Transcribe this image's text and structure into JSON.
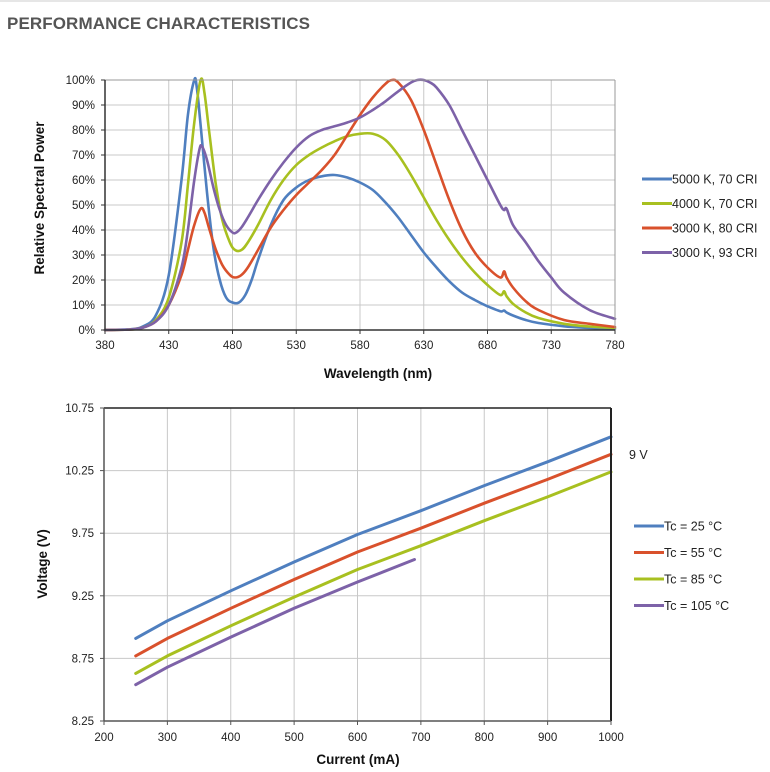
{
  "page": {
    "title": "PERFORMANCE CHARACTERISTICS"
  },
  "chart_data": [
    {
      "type": "line",
      "title": "",
      "xlabel": "Wavelength (nm)",
      "ylabel": "Relative Spectral Power",
      "xlim": [
        380,
        780
      ],
      "ylim": [
        0,
        100
      ],
      "x_ticks": [
        "380",
        "430",
        "480",
        "530",
        "580",
        "630",
        "680",
        "730",
        "780"
      ],
      "y_ticks": [
        "0%",
        "10%",
        "20%",
        "30%",
        "40%",
        "50%",
        "60%",
        "70%",
        "80%",
        "90%",
        "100%"
      ],
      "grid": true,
      "legend_position": "right",
      "series": [
        {
          "name": "5000 K, 70 CRI",
          "color": "#4f7fbf",
          "x": [
            380,
            400,
            410,
            420,
            430,
            440,
            445,
            450,
            452,
            455,
            460,
            465,
            470,
            475,
            480,
            485,
            490,
            495,
            500,
            510,
            520,
            530,
            540,
            550,
            560,
            570,
            580,
            590,
            600,
            610,
            620,
            630,
            640,
            650,
            660,
            670,
            680,
            690,
            693,
            695,
            700,
            710,
            720,
            740,
            760,
            780
          ],
          "y": [
            0,
            0.3,
            1.5,
            6,
            22,
            60,
            86,
            100,
            97,
            82,
            55,
            33,
            20,
            13,
            11,
            11,
            14,
            20,
            28,
            42,
            52,
            57,
            60,
            61.5,
            62,
            61,
            59,
            56,
            51,
            45,
            38,
            31,
            25,
            19.5,
            15,
            12,
            9.5,
            7.5,
            7.8,
            7,
            5.8,
            4,
            2.8,
            1.5,
            0.8,
            0.4
          ]
        },
        {
          "name": "4000 K, 70 CRI",
          "color": "#a8c020",
          "x": [
            380,
            400,
            410,
            420,
            430,
            440,
            445,
            450,
            455,
            458,
            462,
            467,
            472,
            478,
            482,
            487,
            492,
            500,
            510,
            520,
            530,
            540,
            550,
            560,
            570,
            580,
            590,
            600,
            610,
            620,
            630,
            640,
            650,
            660,
            670,
            680,
            690,
            693,
            695,
            700,
            710,
            720,
            740,
            760,
            780
          ],
          "y": [
            0,
            0.2,
            1,
            4,
            13,
            35,
            58,
            83,
            100,
            95,
            78,
            58,
            44,
            35,
            32,
            32,
            35,
            42,
            52,
            60,
            66,
            70,
            73,
            75.5,
            77.5,
            78.5,
            78.5,
            76,
            70,
            62,
            53,
            44,
            36,
            29,
            23,
            18,
            14,
            15.5,
            13.5,
            10.5,
            7,
            4.8,
            2.5,
            1.4,
            0.8
          ]
        },
        {
          "name": "3000 K, 80 CRI",
          "color": "#d9512c",
          "x": [
            380,
            400,
            410,
            420,
            430,
            440,
            445,
            450,
            455,
            458,
            462,
            467,
            472,
            478,
            482,
            487,
            492,
            500,
            510,
            520,
            530,
            540,
            550,
            560,
            570,
            580,
            590,
            600,
            605,
            610,
            620,
            630,
            640,
            650,
            660,
            670,
            680,
            690,
            693,
            695,
            700,
            710,
            720,
            740,
            760,
            780
          ],
          "y": [
            0,
            0.2,
            1,
            3.5,
            10,
            22,
            32,
            42,
            48.5,
            47,
            40,
            32,
            26,
            22,
            21,
            22,
            25,
            32,
            41,
            48,
            54,
            59,
            64,
            70,
            78,
            86,
            93,
            98.5,
            100,
            99,
            92,
            80,
            66,
            52,
            40,
            31,
            25,
            21,
            23.5,
            21,
            17,
            11.5,
            8,
            4,
            2.5,
            1.2
          ]
        },
        {
          "name": "3000 K, 93 CRI",
          "color": "#7d62a8",
          "x": [
            380,
            400,
            410,
            420,
            430,
            440,
            445,
            450,
            454,
            456,
            460,
            465,
            470,
            475,
            480,
            483,
            487,
            492,
            500,
            510,
            520,
            530,
            540,
            550,
            560,
            570,
            580,
            590,
            600,
            610,
            620,
            625,
            630,
            635,
            640,
            650,
            660,
            670,
            680,
            690,
            693,
            695,
            700,
            710,
            720,
            730,
            740,
            760,
            780
          ],
          "y": [
            0,
            0.2,
            1,
            3.5,
            10,
            25,
            40,
            60,
            72,
            73.5,
            68,
            57,
            48,
            42,
            39,
            39,
            41,
            45,
            52,
            60,
            67,
            73,
            77.5,
            80,
            81.5,
            83,
            85,
            88,
            91.5,
            95.5,
            99,
            100,
            100,
            99,
            97,
            90,
            80,
            70,
            60,
            50,
            48,
            48.5,
            42,
            35,
            27.5,
            21,
            15,
            8,
            4.5
          ]
        }
      ]
    },
    {
      "type": "line",
      "title": "",
      "xlabel": "Current (mA)",
      "ylabel": "Voltage (V)",
      "xlim": [
        200,
        1000
      ],
      "ylim": [
        8.25,
        10.75
      ],
      "x_ticks": [
        "200",
        "300",
        "400",
        "500",
        "600",
        "700",
        "800",
        "900",
        "1000"
      ],
      "y_ticks": [
        "8.25",
        "8.75",
        "9.25",
        "9.75",
        "10.25",
        "10.75"
      ],
      "grid": true,
      "legend_position": "right",
      "annotations": [
        {
          "text": "9 V",
          "near": "right of plot, top"
        }
      ],
      "series": [
        {
          "name": "Tc = 25 °C",
          "color": "#4f7fbf",
          "x": [
            250,
            300,
            400,
            500,
            600,
            700,
            800,
            900,
            1000
          ],
          "y": [
            8.91,
            9.05,
            9.29,
            9.52,
            9.74,
            9.93,
            10.13,
            10.32,
            10.52
          ]
        },
        {
          "name": "Tc = 55 °C",
          "color": "#d9512c",
          "x": [
            250,
            300,
            400,
            500,
            600,
            700,
            800,
            900,
            1000
          ],
          "y": [
            8.77,
            8.91,
            9.15,
            9.38,
            9.6,
            9.79,
            9.99,
            10.18,
            10.38
          ]
        },
        {
          "name": "Tc = 85 °C",
          "color": "#a8c020",
          "x": [
            250,
            300,
            400,
            500,
            600,
            700,
            800,
            900,
            1000
          ],
          "y": [
            8.63,
            8.77,
            9.01,
            9.24,
            9.46,
            9.65,
            9.85,
            10.04,
            10.24
          ]
        },
        {
          "name": "Tc = 105 °C",
          "color": "#7d62a8",
          "x": [
            250,
            300,
            400,
            500,
            600,
            690
          ],
          "y": [
            8.54,
            8.68,
            8.92,
            9.15,
            9.36,
            9.54
          ]
        }
      ]
    }
  ]
}
